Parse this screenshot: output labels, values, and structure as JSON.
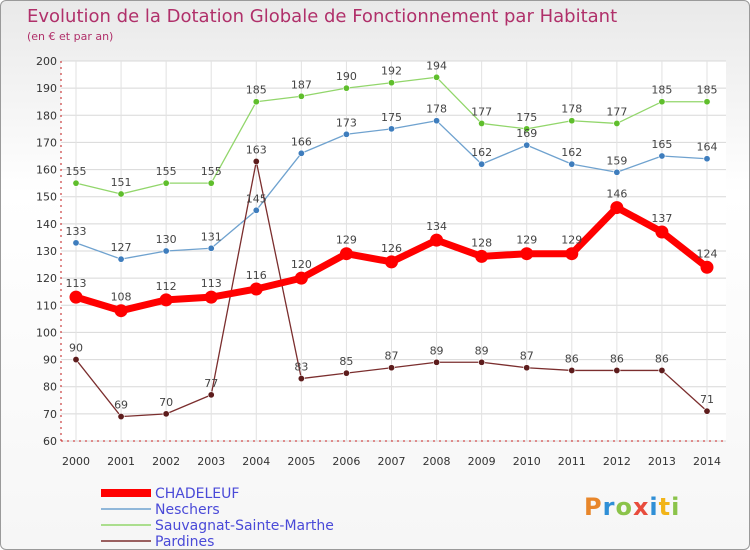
{
  "title": "Evolution de la Dotation Globale de Fonctionnement par Habitant",
  "subtitle": "(en € et par an)",
  "logo_text": "Proxiti",
  "chart_data": {
    "type": "line",
    "title": "Evolution de la Dotation Globale de Fonctionnement par Habitant",
    "subtitle": "(en € et par an)",
    "x": [
      "2000",
      "2001",
      "2002",
      "2003",
      "2004",
      "2005",
      "2006",
      "2007",
      "2008",
      "2009",
      "2010",
      "2011",
      "2012",
      "2013",
      "2014"
    ],
    "ylim": [
      60,
      200
    ],
    "yticks": [
      60,
      70,
      80,
      90,
      100,
      110,
      120,
      130,
      140,
      150,
      160,
      170,
      180,
      190,
      200
    ],
    "grid": true,
    "legend_position": "bottom-left",
    "series": [
      {
        "name": "CHADELEUF",
        "color": "#ff0000",
        "marker_color": "#ff0000",
        "values": [
          113,
          108,
          112,
          113,
          116,
          120,
          129,
          126,
          134,
          128,
          129,
          129,
          146,
          137,
          124
        ]
      },
      {
        "name": "Neschers",
        "color": "#6fa2cf",
        "marker_color": "#3e7dbd",
        "values": [
          133,
          127,
          130,
          131,
          145,
          166,
          173,
          175,
          178,
          162,
          169,
          162,
          159,
          165,
          164
        ]
      },
      {
        "name": "Sauvagnat-Sainte-Marthe",
        "color": "#92d66b",
        "marker_color": "#5fbe2c",
        "values": [
          155,
          151,
          155,
          155,
          185,
          187,
          190,
          192,
          194,
          177,
          175,
          178,
          177,
          185,
          185
        ]
      },
      {
        "name": "Pardines",
        "color": "#7b2e2e",
        "marker_color": "#5d1c1c",
        "values": [
          90,
          69,
          70,
          77,
          163,
          83,
          85,
          87,
          89,
          89,
          87,
          86,
          86,
          86,
          71
        ]
      }
    ]
  }
}
